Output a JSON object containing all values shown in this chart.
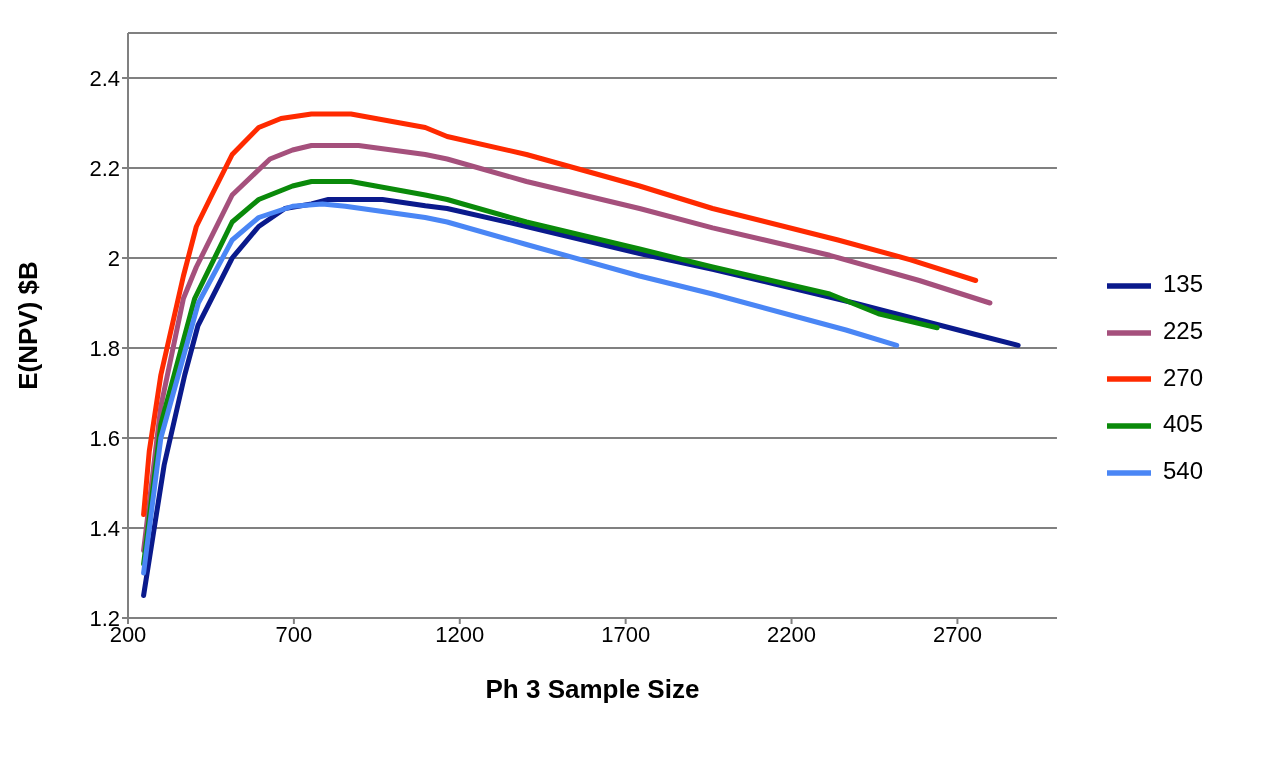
{
  "chart_data": {
    "type": "line",
    "xlabel": "Ph 3 Sample Size",
    "ylabel": "E(NPV) $B",
    "xlim": [
      200,
      3000
    ],
    "xticks": [
      200,
      700,
      1200,
      1700,
      2200,
      2700
    ],
    "ylim": [
      1.2,
      2.5
    ],
    "yticks": [
      1.2,
      1.4,
      1.6,
      1.8,
      2,
      2.2,
      2.4
    ],
    "grid": "y",
    "legend": "right",
    "marker": "none",
    "line_style": "solid",
    "series": [
      {
        "name": "135",
        "color": "#0a1a8c",
        "x": [
          247,
          309,
          371,
          411,
          514,
          594,
          673,
          753,
          804,
          967,
          1096,
          1162,
          1401,
          1742,
          1962,
          2389,
          2755,
          2883
        ],
        "values": [
          1.25,
          1.54,
          1.74,
          1.85,
          2.0,
          2.07,
          2.11,
          2.12,
          2.13,
          2.13,
          2.116,
          2.11,
          2.07,
          2.01,
          1.975,
          1.9,
          1.83,
          1.806
        ]
      },
      {
        "name": "225",
        "color": "#a5507c",
        "x": [
          247,
          299,
          367,
          406,
          514,
          628,
          696,
          753,
          895,
          1096,
          1162,
          1401,
          1742,
          1962,
          2315,
          2585,
          2798
        ],
        "values": [
          1.35,
          1.67,
          1.91,
          1.98,
          2.14,
          2.22,
          2.24,
          2.25,
          2.25,
          2.23,
          2.22,
          2.17,
          2.11,
          2.067,
          2.006,
          1.95,
          1.9
        ]
      },
      {
        "name": "270",
        "color": "#ff2a00",
        "x": [
          247,
          264,
          299,
          367,
          406,
          446,
          514,
          594,
          661,
          753,
          872,
          1096,
          1162,
          1401,
          1742,
          1962,
          2340,
          2559,
          2755
        ],
        "values": [
          1.43,
          1.57,
          1.74,
          1.96,
          2.07,
          2.13,
          2.23,
          2.29,
          2.31,
          2.32,
          2.32,
          2.29,
          2.27,
          2.23,
          2.16,
          2.11,
          2.04,
          1.996,
          1.95
        ]
      },
      {
        "name": "405",
        "color": "#0a8a0a",
        "x": [
          247,
          299,
          401,
          514,
          594,
          696,
          753,
          872,
          1096,
          1162,
          1401,
          1742,
          1962,
          2315,
          2462,
          2639
        ],
        "values": [
          1.32,
          1.63,
          1.91,
          2.08,
          2.13,
          2.16,
          2.17,
          2.17,
          2.14,
          2.13,
          2.08,
          2.02,
          1.98,
          1.92,
          1.876,
          1.845
        ]
      },
      {
        "name": "540",
        "color": "#4a86f5",
        "x": [
          247,
          299,
          412,
          514,
          594,
          696,
          786,
          855,
          1096,
          1162,
          1401,
          1742,
          1962,
          2364,
          2517
        ],
        "values": [
          1.3,
          1.6,
          1.9,
          2.04,
          2.09,
          2.115,
          2.12,
          2.115,
          2.09,
          2.08,
          2.03,
          1.96,
          1.92,
          1.84,
          1.806
        ]
      }
    ]
  }
}
